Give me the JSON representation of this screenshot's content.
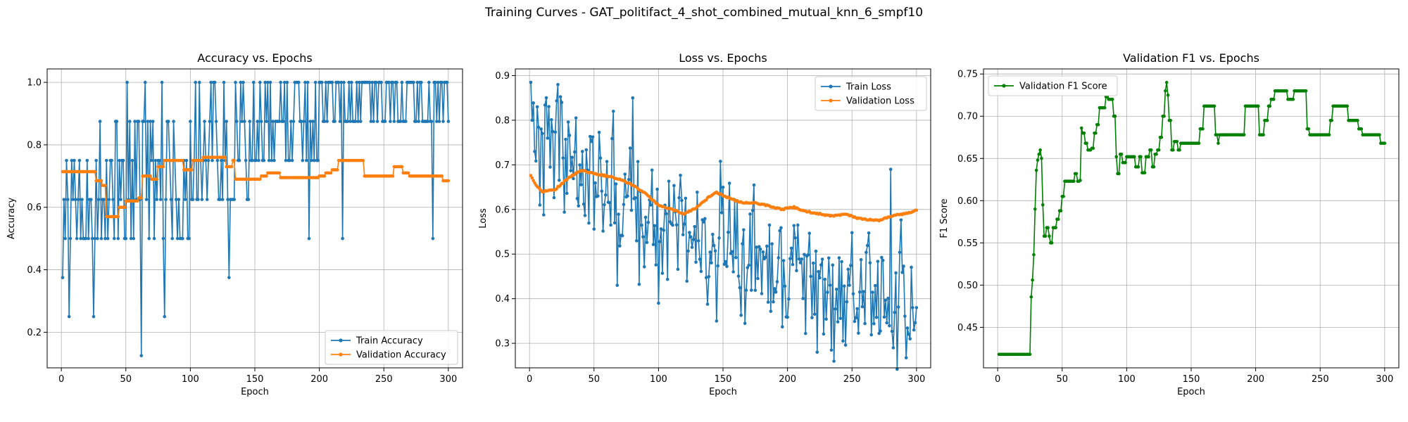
{
  "figure": {
    "suptitle": "Training Curves - GAT_politifact_4_shot_combined_mutual_knn_6_smpf10"
  },
  "colors": {
    "blue": "#1f77b4",
    "orange": "#ff7f0e",
    "green": "#008000",
    "grid": "#b0b0b0"
  },
  "chart_data": [
    {
      "type": "line",
      "title": "Accuracy vs. Epochs",
      "xlabel": "Epoch",
      "ylabel": "Accuracy",
      "xlim": [
        -11,
        311
      ],
      "ylim": [
        0.086,
        1.043
      ],
      "xticks": [
        0,
        50,
        100,
        150,
        200,
        250,
        300
      ],
      "yticks": [
        0.2,
        0.4,
        0.6,
        0.8,
        1.0
      ],
      "ytick_labels": [
        "0.2",
        "0.4",
        "0.6",
        "0.8",
        "1.0"
      ],
      "grid": true,
      "legend": "lower-right",
      "series": [
        {
          "name": "Train Accuracy",
          "color": "#1f77b4",
          "kind": "seeded_discrete",
          "levels": [
            0.125,
            0.25,
            0.375,
            0.5,
            0.625,
            0.75,
            0.875,
            1.0
          ],
          "key_points": [
            [
              1,
              0.375
            ],
            [
              2,
              0.625
            ],
            [
              3,
              0.5
            ],
            [
              6,
              0.25
            ],
            [
              10,
              0.75
            ],
            [
              25,
              0.25
            ],
            [
              28,
              0.5
            ],
            [
              30,
              0.875
            ],
            [
              51,
              1.0
            ],
            [
              62,
              0.125
            ],
            [
              65,
              1.0
            ],
            [
              78,
              1.0
            ],
            [
              80,
              0.25
            ],
            [
              130,
              0.375
            ],
            [
              192,
              0.5
            ],
            [
              218,
              0.5
            ],
            [
              288,
              0.5
            ],
            [
              300,
              0.875
            ]
          ],
          "segments": [
            [
              1,
              0.5,
              0.75
            ],
            [
              40,
              0.5,
              0.875
            ],
            [
              100,
              0.625,
              1.0
            ],
            [
              150,
              0.75,
              1.0
            ],
            [
              200,
              0.875,
              1.0
            ],
            [
              250,
              0.875,
              1.0
            ],
            [
              300,
              0.875,
              1.0
            ]
          ]
        },
        {
          "name": "Validation Accuracy",
          "color": "#ff7f0e",
          "kind": "step",
          "knots": [
            [
              1,
              0.714
            ],
            [
              25,
              0.714
            ],
            [
              27,
              0.685
            ],
            [
              32,
              0.67
            ],
            [
              35,
              0.57
            ],
            [
              40,
              0.57
            ],
            [
              45,
              0.6
            ],
            [
              50,
              0.62
            ],
            [
              60,
              0.63
            ],
            [
              63,
              0.7
            ],
            [
              70,
              0.69
            ],
            [
              75,
              0.73
            ],
            [
              80,
              0.75
            ],
            [
              90,
              0.75
            ],
            [
              95,
              0.72
            ],
            [
              102,
              0.75
            ],
            [
              110,
              0.76
            ],
            [
              125,
              0.76
            ],
            [
              128,
              0.73
            ],
            [
              133,
              0.75
            ],
            [
              135,
              0.69
            ],
            [
              140,
              0.69
            ],
            [
              155,
              0.7
            ],
            [
              160,
              0.71
            ],
            [
              168,
              0.71
            ],
            [
              170,
              0.695
            ],
            [
              200,
              0.7
            ],
            [
              205,
              0.71
            ],
            [
              210,
              0.72
            ],
            [
              215,
              0.75
            ],
            [
              230,
              0.75
            ],
            [
              235,
              0.7
            ],
            [
              255,
              0.7
            ],
            [
              258,
              0.73
            ],
            [
              262,
              0.73
            ],
            [
              265,
              0.71
            ],
            [
              270,
              0.7
            ],
            [
              295,
              0.7
            ],
            [
              296,
              0.685
            ],
            [
              300,
              0.685
            ]
          ]
        }
      ]
    },
    {
      "type": "line",
      "title": "Loss vs. Epochs",
      "xlabel": "Epoch",
      "ylabel": "Loss",
      "xlim": [
        -11,
        311
      ],
      "ylim": [
        0.245,
        0.915
      ],
      "xticks": [
        0,
        50,
        100,
        150,
        200,
        250,
        300
      ],
      "yticks": [
        0.3,
        0.4,
        0.5,
        0.6,
        0.7,
        0.8,
        0.9
      ],
      "ytick_labels": [
        "0.3",
        "0.4",
        "0.5",
        "0.6",
        "0.7",
        "0.8",
        "0.9"
      ],
      "grid": true,
      "legend": "top-right",
      "series": [
        {
          "name": "Train Loss",
          "color": "#1f77b4",
          "kind": "seeded_noise",
          "key_points": [
            [
              1,
              0.885
            ],
            [
              2,
              0.8
            ],
            [
              4,
              0.73
            ],
            [
              6,
              0.83
            ],
            [
              8,
              0.61
            ],
            [
              22,
              0.88
            ],
            [
              25,
              0.84
            ],
            [
              65,
              0.82
            ],
            [
              68,
              0.43
            ],
            [
              80,
              0.85
            ],
            [
              100,
              0.39
            ],
            [
              145,
              0.35
            ],
            [
              223,
              0.28
            ],
            [
              236,
              0.26
            ],
            [
              280,
              0.69
            ],
            [
              282,
              0.29
            ],
            [
              295,
              0.31
            ],
            [
              298,
              0.33
            ],
            [
              300,
              0.38
            ]
          ],
          "trend": [
            [
              1,
              0.78
            ],
            [
              50,
              0.65
            ],
            [
              100,
              0.56
            ],
            [
              150,
              0.52
            ],
            [
              200,
              0.47
            ],
            [
              250,
              0.42
            ],
            [
              300,
              0.4
            ]
          ],
          "amplitude": 0.07
        },
        {
          "name": "Validation Loss",
          "color": "#ff7f0e",
          "kind": "smooth",
          "knots": [
            [
              1,
              0.675
            ],
            [
              5,
              0.655
            ],
            [
              10,
              0.64
            ],
            [
              20,
              0.645
            ],
            [
              30,
              0.67
            ],
            [
              40,
              0.688
            ],
            [
              50,
              0.68
            ],
            [
              60,
              0.675
            ],
            [
              70,
              0.668
            ],
            [
              80,
              0.655
            ],
            [
              90,
              0.635
            ],
            [
              100,
              0.61
            ],
            [
              110,
              0.6
            ],
            [
              120,
              0.59
            ],
            [
              130,
              0.605
            ],
            [
              140,
              0.63
            ],
            [
              145,
              0.638
            ],
            [
              155,
              0.625
            ],
            [
              165,
              0.615
            ],
            [
              175,
              0.615
            ],
            [
              185,
              0.608
            ],
            [
              195,
              0.6
            ],
            [
              205,
              0.605
            ],
            [
              215,
              0.595
            ],
            [
              225,
              0.59
            ],
            [
              235,
              0.585
            ],
            [
              245,
              0.59
            ],
            [
              255,
              0.58
            ],
            [
              270,
              0.575
            ],
            [
              280,
              0.585
            ],
            [
              290,
              0.59
            ],
            [
              300,
              0.598
            ]
          ]
        }
      ]
    },
    {
      "type": "line",
      "title": "Validation F1 vs. Epochs",
      "xlabel": "Epoch",
      "ylabel": "F1 Score",
      "xlim": [
        -11,
        311
      ],
      "ylim": [
        0.402,
        0.756
      ],
      "xticks": [
        0,
        50,
        100,
        150,
        200,
        250,
        300
      ],
      "yticks": [
        0.45,
        0.5,
        0.55,
        0.6,
        0.65,
        0.7,
        0.75
      ],
      "ytick_labels": [
        "0.45",
        "0.50",
        "0.55",
        "0.60",
        "0.65",
        "0.70",
        "0.75"
      ],
      "grid": true,
      "legend": "top-left",
      "series": [
        {
          "name": "Validation F1 Score",
          "color": "#008000",
          "kind": "step",
          "knots": [
            [
              1,
              0.418
            ],
            [
              25,
              0.418
            ],
            [
              26,
              0.486
            ],
            [
              27,
              0.506
            ],
            [
              28,
              0.536
            ],
            [
              29,
              0.59
            ],
            [
              30,
              0.636
            ],
            [
              31,
              0.648
            ],
            [
              32,
              0.655
            ],
            [
              33,
              0.66
            ],
            [
              34,
              0.65
            ],
            [
              35,
              0.595
            ],
            [
              36,
              0.558
            ],
            [
              38,
              0.568
            ],
            [
              40,
              0.558
            ],
            [
              41,
              0.55
            ],
            [
              43,
              0.568
            ],
            [
              46,
              0.578
            ],
            [
              48,
              0.588
            ],
            [
              50,
              0.605
            ],
            [
              52,
              0.623
            ],
            [
              58,
              0.623
            ],
            [
              60,
              0.632
            ],
            [
              62,
              0.623
            ],
            [
              64,
              0.624
            ],
            [
              65,
              0.686
            ],
            [
              66,
              0.68
            ],
            [
              68,
              0.668
            ],
            [
              70,
              0.66
            ],
            [
              73,
              0.662
            ],
            [
              75,
              0.68
            ],
            [
              77,
              0.69
            ],
            [
              79,
              0.71
            ],
            [
              82,
              0.71
            ],
            [
              84,
              0.723
            ],
            [
              86,
              0.72
            ],
            [
              88,
              0.72
            ],
            [
              90,
              0.7
            ],
            [
              92,
              0.652
            ],
            [
              93,
              0.632
            ],
            [
              95,
              0.655
            ],
            [
              97,
              0.645
            ],
            [
              100,
              0.652
            ],
            [
              105,
              0.652
            ],
            [
              107,
              0.64
            ],
            [
              110,
              0.652
            ],
            [
              112,
              0.633
            ],
            [
              115,
              0.652
            ],
            [
              118,
              0.66
            ],
            [
              120,
              0.64
            ],
            [
              122,
              0.655
            ],
            [
              124,
              0.66
            ],
            [
              126,
              0.675
            ],
            [
              128,
              0.7
            ],
            [
              130,
              0.73
            ],
            [
              131,
              0.74
            ],
            [
              132,
              0.725
            ],
            [
              133,
              0.695
            ],
            [
              135,
              0.66
            ],
            [
              137,
              0.67
            ],
            [
              140,
              0.66
            ],
            [
              142,
              0.668
            ],
            [
              155,
              0.668
            ],
            [
              157,
              0.685
            ],
            [
              160,
              0.712
            ],
            [
              168,
              0.712
            ],
            [
              169,
              0.678
            ],
            [
              171,
              0.668
            ],
            [
              172,
              0.678
            ],
            [
              190,
              0.678
            ],
            [
              192,
              0.712
            ],
            [
              200,
              0.712
            ],
            [
              203,
              0.678
            ],
            [
              207,
              0.695
            ],
            [
              210,
              0.712
            ],
            [
              212,
              0.72
            ],
            [
              215,
              0.73
            ],
            [
              222,
              0.73
            ],
            [
              225,
              0.72
            ],
            [
              230,
              0.73
            ],
            [
              237,
              0.73
            ],
            [
              240,
              0.685
            ],
            [
              242,
              0.678
            ],
            [
              255,
              0.678
            ],
            [
              258,
              0.695
            ],
            [
              260,
              0.712
            ],
            [
              270,
              0.712
            ],
            [
              272,
              0.695
            ],
            [
              278,
              0.695
            ],
            [
              280,
              0.685
            ],
            [
              283,
              0.678
            ],
            [
              295,
              0.678
            ],
            [
              297,
              0.668
            ],
            [
              300,
              0.668
            ]
          ]
        }
      ]
    }
  ]
}
